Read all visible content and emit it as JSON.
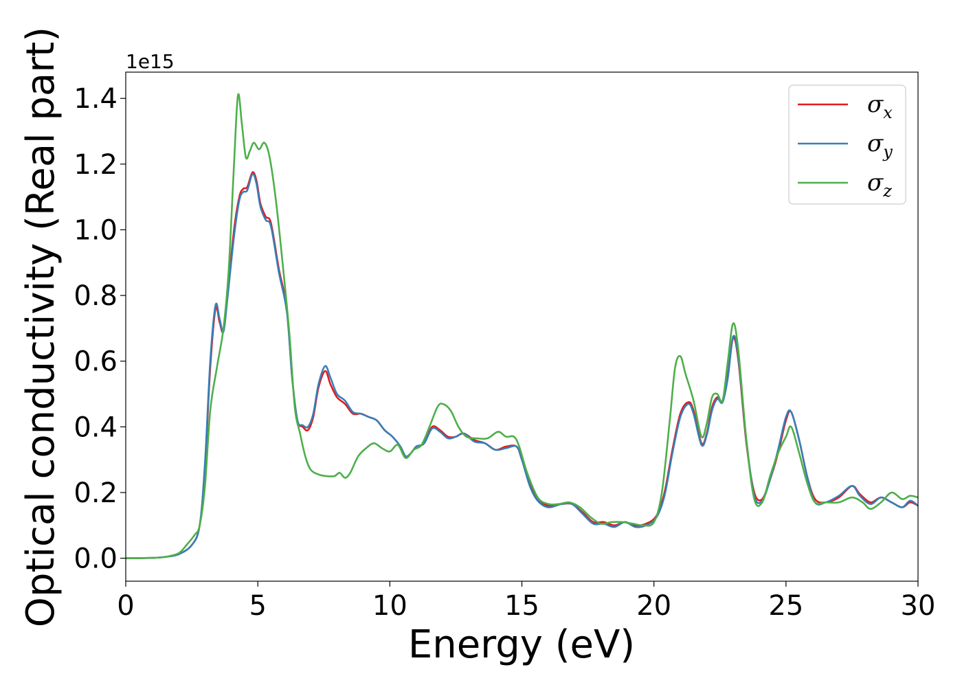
{
  "chart_data": {
    "type": "line",
    "title": "",
    "xlabel": "Energy (eV)",
    "ylabel": "Optical conductivity (Real part)",
    "y_offset_label": "1e15",
    "y_scale_factor": 1000000000000000.0,
    "xlim": [
      0,
      30
    ],
    "ylim": [
      -0.07,
      1.48
    ],
    "xticks": [
      0,
      5,
      10,
      15,
      20,
      25,
      30
    ],
    "yticks": [
      0.0,
      0.2,
      0.4,
      0.6,
      0.8,
      1.0,
      1.2,
      1.4
    ],
    "grid": false,
    "legend_position": "top-right",
    "series": [
      {
        "name": "σx",
        "symbol": "σ",
        "sub": "x",
        "color": "#e41a1c",
        "points": [
          [
            0,
            0
          ],
          [
            1,
            0.001
          ],
          [
            1.5,
            0.004
          ],
          [
            2,
            0.012
          ],
          [
            2.5,
            0.04
          ],
          [
            2.8,
            0.1
          ],
          [
            3,
            0.28
          ],
          [
            3.2,
            0.58
          ],
          [
            3.4,
            0.76
          ],
          [
            3.55,
            0.72
          ],
          [
            3.7,
            0.69
          ],
          [
            3.85,
            0.8
          ],
          [
            4.1,
            1.0
          ],
          [
            4.3,
            1.1
          ],
          [
            4.45,
            1.125
          ],
          [
            4.6,
            1.13
          ],
          [
            4.8,
            1.175
          ],
          [
            4.95,
            1.15
          ],
          [
            5.1,
            1.08
          ],
          [
            5.3,
            1.04
          ],
          [
            5.5,
            1.02
          ],
          [
            5.8,
            0.88
          ],
          [
            6.1,
            0.76
          ],
          [
            6.3,
            0.55
          ],
          [
            6.5,
            0.42
          ],
          [
            6.7,
            0.4
          ],
          [
            6.9,
            0.39
          ],
          [
            7.1,
            0.43
          ],
          [
            7.3,
            0.52
          ],
          [
            7.55,
            0.57
          ],
          [
            7.75,
            0.53
          ],
          [
            8,
            0.49
          ],
          [
            8.3,
            0.47
          ],
          [
            8.6,
            0.44
          ],
          [
            8.9,
            0.44
          ],
          [
            9.2,
            0.43
          ],
          [
            9.5,
            0.42
          ],
          [
            9.8,
            0.39
          ],
          [
            10.1,
            0.37
          ],
          [
            10.4,
            0.34
          ],
          [
            10.6,
            0.31
          ],
          [
            10.8,
            0.32
          ],
          [
            11.0,
            0.34
          ],
          [
            11.3,
            0.35
          ],
          [
            11.6,
            0.4
          ],
          [
            11.9,
            0.39
          ],
          [
            12.2,
            0.37
          ],
          [
            12.5,
            0.37
          ],
          [
            12.8,
            0.38
          ],
          [
            13.2,
            0.36
          ],
          [
            13.6,
            0.35
          ],
          [
            14.0,
            0.33
          ],
          [
            14.4,
            0.34
          ],
          [
            14.8,
            0.34
          ],
          [
            15.0,
            0.3
          ],
          [
            15.3,
            0.23
          ],
          [
            15.6,
            0.18
          ],
          [
            16.0,
            0.16
          ],
          [
            16.5,
            0.165
          ],
          [
            16.9,
            0.165
          ],
          [
            17.3,
            0.14
          ],
          [
            17.7,
            0.11
          ],
          [
            18.1,
            0.11
          ],
          [
            18.5,
            0.1
          ],
          [
            18.9,
            0.11
          ],
          [
            19.3,
            0.1
          ],
          [
            19.7,
            0.105
          ],
          [
            20.1,
            0.13
          ],
          [
            20.4,
            0.2
          ],
          [
            20.7,
            0.33
          ],
          [
            21.0,
            0.44
          ],
          [
            21.3,
            0.475
          ],
          [
            21.5,
            0.45
          ],
          [
            21.8,
            0.35
          ],
          [
            22.0,
            0.38
          ],
          [
            22.2,
            0.46
          ],
          [
            22.4,
            0.49
          ],
          [
            22.6,
            0.48
          ],
          [
            22.8,
            0.56
          ],
          [
            23.0,
            0.67
          ],
          [
            23.2,
            0.6
          ],
          [
            23.5,
            0.35
          ],
          [
            23.8,
            0.2
          ],
          [
            24.1,
            0.18
          ],
          [
            24.4,
            0.24
          ],
          [
            24.7,
            0.32
          ],
          [
            25.0,
            0.42
          ],
          [
            25.2,
            0.445
          ],
          [
            25.5,
            0.36
          ],
          [
            25.8,
            0.25
          ],
          [
            26.1,
            0.18
          ],
          [
            26.5,
            0.17
          ],
          [
            27.0,
            0.185
          ],
          [
            27.5,
            0.22
          ],
          [
            27.8,
            0.195
          ],
          [
            28.2,
            0.17
          ],
          [
            28.6,
            0.185
          ],
          [
            29.0,
            0.17
          ],
          [
            29.4,
            0.155
          ],
          [
            29.7,
            0.17
          ],
          [
            30,
            0.16
          ]
        ]
      },
      {
        "name": "σy",
        "symbol": "σ",
        "sub": "y",
        "color": "#377eb8",
        "points": [
          [
            0,
            0
          ],
          [
            1,
            0.001
          ],
          [
            1.5,
            0.004
          ],
          [
            2,
            0.012
          ],
          [
            2.5,
            0.04
          ],
          [
            2.8,
            0.1
          ],
          [
            3,
            0.29
          ],
          [
            3.2,
            0.6
          ],
          [
            3.4,
            0.77
          ],
          [
            3.55,
            0.73
          ],
          [
            3.7,
            0.69
          ],
          [
            3.85,
            0.79
          ],
          [
            4.1,
            0.98
          ],
          [
            4.3,
            1.09
          ],
          [
            4.45,
            1.115
          ],
          [
            4.6,
            1.12
          ],
          [
            4.8,
            1.17
          ],
          [
            4.95,
            1.14
          ],
          [
            5.1,
            1.07
          ],
          [
            5.3,
            1.03
          ],
          [
            5.5,
            1.01
          ],
          [
            5.8,
            0.87
          ],
          [
            6.1,
            0.75
          ],
          [
            6.3,
            0.55
          ],
          [
            6.5,
            0.42
          ],
          [
            6.7,
            0.405
          ],
          [
            6.9,
            0.4
          ],
          [
            7.1,
            0.44
          ],
          [
            7.3,
            0.53
          ],
          [
            7.55,
            0.585
          ],
          [
            7.75,
            0.55
          ],
          [
            8,
            0.5
          ],
          [
            8.3,
            0.48
          ],
          [
            8.6,
            0.445
          ],
          [
            8.9,
            0.44
          ],
          [
            9.2,
            0.43
          ],
          [
            9.5,
            0.42
          ],
          [
            9.8,
            0.39
          ],
          [
            10.1,
            0.37
          ],
          [
            10.4,
            0.34
          ],
          [
            10.6,
            0.31
          ],
          [
            10.8,
            0.32
          ],
          [
            11.0,
            0.34
          ],
          [
            11.3,
            0.35
          ],
          [
            11.6,
            0.395
          ],
          [
            11.9,
            0.385
          ],
          [
            12.2,
            0.365
          ],
          [
            12.5,
            0.37
          ],
          [
            12.8,
            0.38
          ],
          [
            13.2,
            0.355
          ],
          [
            13.6,
            0.35
          ],
          [
            14.0,
            0.33
          ],
          [
            14.4,
            0.335
          ],
          [
            14.8,
            0.34
          ],
          [
            15.0,
            0.3
          ],
          [
            15.3,
            0.22
          ],
          [
            15.6,
            0.175
          ],
          [
            16.0,
            0.155
          ],
          [
            16.5,
            0.165
          ],
          [
            16.9,
            0.165
          ],
          [
            17.3,
            0.135
          ],
          [
            17.7,
            0.105
          ],
          [
            18.1,
            0.105
          ],
          [
            18.5,
            0.095
          ],
          [
            18.9,
            0.11
          ],
          [
            19.3,
            0.095
          ],
          [
            19.7,
            0.1
          ],
          [
            20.1,
            0.125
          ],
          [
            20.4,
            0.19
          ],
          [
            20.7,
            0.32
          ],
          [
            21.0,
            0.43
          ],
          [
            21.3,
            0.47
          ],
          [
            21.5,
            0.44
          ],
          [
            21.8,
            0.345
          ],
          [
            22.0,
            0.375
          ],
          [
            22.2,
            0.45
          ],
          [
            22.4,
            0.485
          ],
          [
            22.6,
            0.475
          ],
          [
            22.8,
            0.55
          ],
          [
            23.0,
            0.675
          ],
          [
            23.2,
            0.61
          ],
          [
            23.5,
            0.36
          ],
          [
            23.8,
            0.19
          ],
          [
            24.1,
            0.175
          ],
          [
            24.4,
            0.24
          ],
          [
            24.7,
            0.33
          ],
          [
            25.0,
            0.43
          ],
          [
            25.2,
            0.445
          ],
          [
            25.5,
            0.36
          ],
          [
            25.8,
            0.25
          ],
          [
            26.1,
            0.17
          ],
          [
            26.5,
            0.17
          ],
          [
            27.0,
            0.19
          ],
          [
            27.5,
            0.22
          ],
          [
            27.8,
            0.19
          ],
          [
            28.2,
            0.165
          ],
          [
            28.6,
            0.185
          ],
          [
            29.0,
            0.17
          ],
          [
            29.4,
            0.155
          ],
          [
            29.7,
            0.175
          ],
          [
            30,
            0.16
          ]
        ]
      },
      {
        "name": "σz",
        "symbol": "σ",
        "sub": "z",
        "color": "#4daf4a",
        "points": [
          [
            0,
            0
          ],
          [
            1,
            0.001
          ],
          [
            1.5,
            0.004
          ],
          [
            2,
            0.015
          ],
          [
            2.3,
            0.04
          ],
          [
            2.6,
            0.07
          ],
          [
            2.8,
            0.1
          ],
          [
            3.0,
            0.22
          ],
          [
            3.2,
            0.45
          ],
          [
            3.45,
            0.58
          ],
          [
            3.7,
            0.7
          ],
          [
            3.9,
            0.88
          ],
          [
            4.1,
            1.2
          ],
          [
            4.25,
            1.41
          ],
          [
            4.4,
            1.32
          ],
          [
            4.55,
            1.22
          ],
          [
            4.7,
            1.24
          ],
          [
            4.85,
            1.265
          ],
          [
            5.05,
            1.245
          ],
          [
            5.25,
            1.265
          ],
          [
            5.45,
            1.22
          ],
          [
            5.7,
            1.08
          ],
          [
            6.0,
            0.85
          ],
          [
            6.2,
            0.68
          ],
          [
            6.4,
            0.46
          ],
          [
            6.6,
            0.38
          ],
          [
            6.8,
            0.31
          ],
          [
            7.0,
            0.27
          ],
          [
            7.3,
            0.255
          ],
          [
            7.6,
            0.25
          ],
          [
            7.9,
            0.25
          ],
          [
            8.1,
            0.26
          ],
          [
            8.3,
            0.245
          ],
          [
            8.5,
            0.26
          ],
          [
            8.8,
            0.31
          ],
          [
            9.1,
            0.335
          ],
          [
            9.4,
            0.35
          ],
          [
            9.7,
            0.335
          ],
          [
            10.0,
            0.325
          ],
          [
            10.3,
            0.345
          ],
          [
            10.6,
            0.305
          ],
          [
            10.9,
            0.33
          ],
          [
            11.2,
            0.345
          ],
          [
            11.5,
            0.4
          ],
          [
            11.8,
            0.46
          ],
          [
            12.0,
            0.47
          ],
          [
            12.3,
            0.45
          ],
          [
            12.6,
            0.4
          ],
          [
            12.9,
            0.37
          ],
          [
            13.3,
            0.365
          ],
          [
            13.7,
            0.365
          ],
          [
            14.1,
            0.385
          ],
          [
            14.4,
            0.37
          ],
          [
            14.7,
            0.37
          ],
          [
            14.9,
            0.34
          ],
          [
            15.2,
            0.26
          ],
          [
            15.6,
            0.185
          ],
          [
            16.0,
            0.165
          ],
          [
            16.4,
            0.165
          ],
          [
            16.8,
            0.17
          ],
          [
            17.2,
            0.155
          ],
          [
            17.6,
            0.125
          ],
          [
            18.0,
            0.105
          ],
          [
            18.4,
            0.11
          ],
          [
            18.8,
            0.11
          ],
          [
            19.2,
            0.105
          ],
          [
            19.6,
            0.1
          ],
          [
            20.0,
            0.11
          ],
          [
            20.3,
            0.2
          ],
          [
            20.6,
            0.42
          ],
          [
            20.8,
            0.58
          ],
          [
            21.0,
            0.615
          ],
          [
            21.2,
            0.56
          ],
          [
            21.5,
            0.48
          ],
          [
            21.8,
            0.37
          ],
          [
            22.0,
            0.41
          ],
          [
            22.2,
            0.49
          ],
          [
            22.4,
            0.5
          ],
          [
            22.6,
            0.48
          ],
          [
            22.8,
            0.6
          ],
          [
            23.0,
            0.715
          ],
          [
            23.2,
            0.63
          ],
          [
            23.5,
            0.36
          ],
          [
            23.8,
            0.18
          ],
          [
            24.1,
            0.17
          ],
          [
            24.4,
            0.25
          ],
          [
            24.7,
            0.32
          ],
          [
            25.0,
            0.37
          ],
          [
            25.2,
            0.4
          ],
          [
            25.5,
            0.32
          ],
          [
            25.8,
            0.23
          ],
          [
            26.1,
            0.17
          ],
          [
            26.5,
            0.17
          ],
          [
            27.0,
            0.17
          ],
          [
            27.5,
            0.185
          ],
          [
            27.9,
            0.17
          ],
          [
            28.2,
            0.15
          ],
          [
            28.6,
            0.17
          ],
          [
            29.0,
            0.2
          ],
          [
            29.4,
            0.18
          ],
          [
            29.7,
            0.19
          ],
          [
            30,
            0.185
          ]
        ]
      }
    ]
  }
}
